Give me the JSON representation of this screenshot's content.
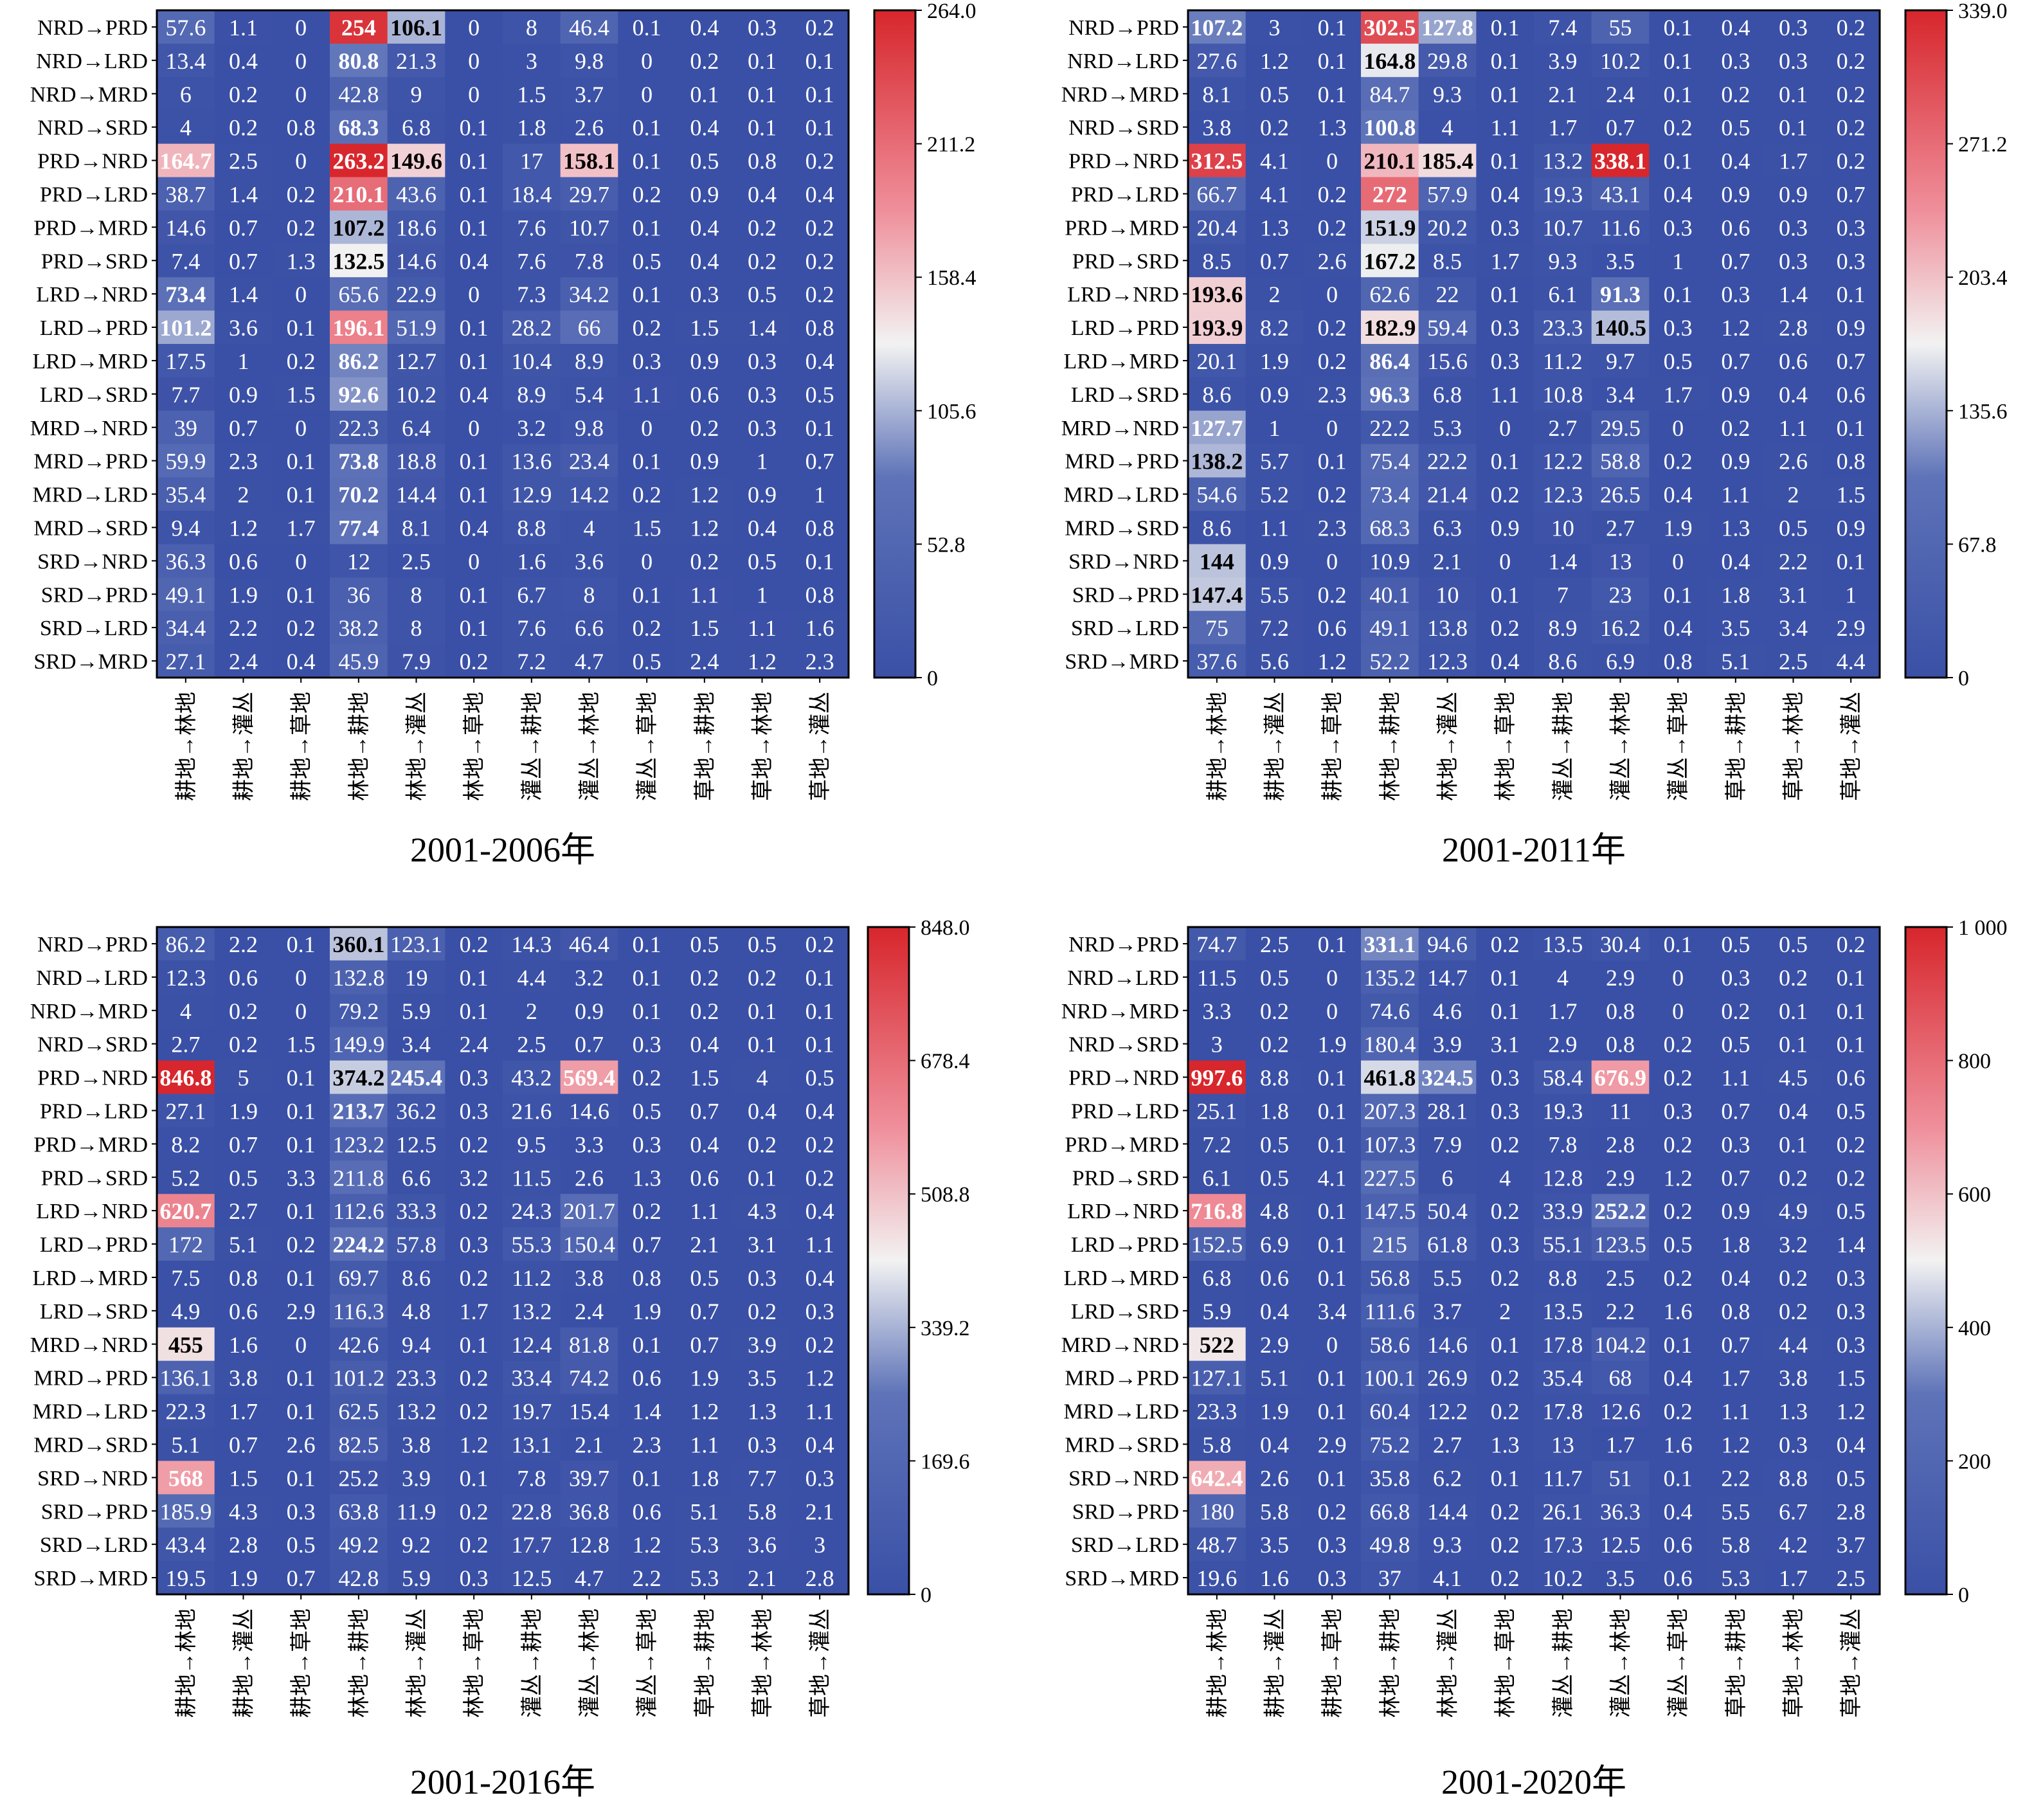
{
  "figure": {
    "row_labels": [
      "NRD→PRD",
      "NRD→LRD",
      "NRD→MRD",
      "NRD→SRD",
      "PRD→NRD",
      "PRD→LRD",
      "PRD→MRD",
      "PRD→SRD",
      "LRD→NRD",
      "LRD→PRD",
      "LRD→MRD",
      "LRD→SRD",
      "MRD→NRD",
      "MRD→PRD",
      "MRD→LRD",
      "MRD→SRD",
      "SRD→NRD",
      "SRD→PRD",
      "SRD→LRD",
      "SRD→MRD"
    ],
    "col_labels": [
      "耕地→林地",
      "耕地→灌丛",
      "耕地→草地",
      "林地→耕地",
      "林地→灌丛",
      "林地→草地",
      "灌丛→耕地",
      "灌丛→林地",
      "灌丛→草地",
      "草地→耕地",
      "草地→林地",
      "草地→灌丛"
    ],
    "colors": {
      "low": "#3a50a6",
      "mid": "#f2f2f2",
      "high": "#d7262c",
      "cell_text_light": "#ffffff",
      "cell_text_dark": "#000000",
      "frame": "#000000"
    }
  },
  "chart_data": [
    {
      "type": "heatmap",
      "title": "2001-2006年",
      "vmin": 0,
      "vmax": 264.0,
      "colorbar_ticks": [
        "264.0",
        "211.2",
        "158.4",
        "105.6",
        "52.8",
        "0"
      ],
      "colorbar_tick_values": [
        264.0,
        211.2,
        158.4,
        105.6,
        52.8,
        0
      ],
      "values": [
        [
          57.6,
          1.1,
          0,
          254,
          106.1,
          0,
          8,
          46.4,
          0.1,
          0.4,
          0.3,
          0.2
        ],
        [
          13.4,
          0.4,
          0,
          80.8,
          21.3,
          0,
          3,
          9.8,
          0,
          0.2,
          0.1,
          0.1
        ],
        [
          6,
          0.2,
          0,
          42.8,
          9,
          0,
          1.5,
          3.7,
          0,
          0.1,
          0.1,
          0.1
        ],
        [
          4,
          0.2,
          0.8,
          68.3,
          6.8,
          0.1,
          1.8,
          2.6,
          0.1,
          0.4,
          0.1,
          0.1
        ],
        [
          164.7,
          2.5,
          0,
          263.2,
          149.6,
          0.1,
          17,
          158.1,
          0.1,
          0.5,
          0.8,
          0.2
        ],
        [
          38.7,
          1.4,
          0.2,
          210.1,
          43.6,
          0.1,
          18.4,
          29.7,
          0.2,
          0.9,
          0.4,
          0.4
        ],
        [
          14.6,
          0.7,
          0.2,
          107.2,
          18.6,
          0.1,
          7.6,
          10.7,
          0.1,
          0.4,
          0.2,
          0.2
        ],
        [
          7.4,
          0.7,
          1.3,
          132.5,
          14.6,
          0.4,
          7.6,
          7.8,
          0.5,
          0.4,
          0.2,
          0.2
        ],
        [
          73.4,
          1.4,
          0,
          65.6,
          22.9,
          0,
          7.3,
          34.2,
          0.1,
          0.3,
          0.5,
          0.2
        ],
        [
          101.2,
          3.6,
          0.1,
          196.1,
          51.9,
          0.1,
          28.2,
          66,
          0.2,
          1.5,
          1.4,
          0.8
        ],
        [
          17.5,
          1,
          0.2,
          86.2,
          12.7,
          0.1,
          10.4,
          8.9,
          0.3,
          0.9,
          0.3,
          0.4
        ],
        [
          7.7,
          0.9,
          1.5,
          92.6,
          10.2,
          0.4,
          8.9,
          5.4,
          1.1,
          0.6,
          0.3,
          0.5
        ],
        [
          39,
          0.7,
          0,
          22.3,
          6.4,
          0,
          3.2,
          9.8,
          0,
          0.2,
          0.3,
          0.1
        ],
        [
          59.9,
          2.3,
          0.1,
          73.8,
          18.8,
          0.1,
          13.6,
          23.4,
          0.1,
          0.9,
          1,
          0.7
        ],
        [
          35.4,
          2,
          0.1,
          70.2,
          14.4,
          0.1,
          12.9,
          14.2,
          0.2,
          1.2,
          0.9,
          1
        ],
        [
          9.4,
          1.2,
          1.7,
          77.4,
          8.1,
          0.4,
          8.8,
          4,
          1.5,
          1.2,
          0.4,
          0.8
        ],
        [
          36.3,
          0.6,
          0,
          12,
          2.5,
          0,
          1.6,
          3.6,
          0,
          0.2,
          0.5,
          0.1
        ],
        [
          49.1,
          1.9,
          0.1,
          36,
          8,
          0.1,
          6.7,
          8,
          0.1,
          1.1,
          1,
          0.8
        ],
        [
          34.4,
          2.2,
          0.2,
          38.2,
          8,
          0.1,
          7.6,
          6.6,
          0.2,
          1.5,
          1.1,
          1.6
        ],
        [
          27.1,
          2.4,
          0.4,
          45.9,
          7.9,
          0.2,
          7.2,
          4.7,
          0.5,
          2.4,
          1.2,
          2.3
        ]
      ]
    },
    {
      "type": "heatmap",
      "title": "2001-2011年",
      "vmin": 0,
      "vmax": 339.0,
      "colorbar_ticks": [
        "339.0",
        "271.2",
        "203.4",
        "135.6",
        "67.8",
        "0"
      ],
      "colorbar_tick_values": [
        339.0,
        271.2,
        203.4,
        135.6,
        67.8,
        0
      ],
      "values": [
        [
          107.2,
          3,
          0.1,
          302.5,
          127.8,
          0.1,
          7.4,
          55,
          0.1,
          0.4,
          0.3,
          0.2
        ],
        [
          27.6,
          1.2,
          0.1,
          164.8,
          29.8,
          0.1,
          3.9,
          10.2,
          0.1,
          0.3,
          0.3,
          0.2
        ],
        [
          8.1,
          0.5,
          0.1,
          84.7,
          9.3,
          0.1,
          2.1,
          2.4,
          0.1,
          0.2,
          0.1,
          0.2
        ],
        [
          3.8,
          0.2,
          1.3,
          100.8,
          4,
          1.1,
          1.7,
          0.7,
          0.2,
          0.5,
          0.1,
          0.2
        ],
        [
          312.5,
          4.1,
          0,
          210.1,
          185.4,
          0.1,
          13.2,
          338.1,
          0.1,
          0.4,
          1.7,
          0.2
        ],
        [
          66.7,
          4.1,
          0.2,
          272,
          57.9,
          0.4,
          19.3,
          43.1,
          0.4,
          0.9,
          0.9,
          0.7
        ],
        [
          20.4,
          1.3,
          0.2,
          151.9,
          20.2,
          0.3,
          10.7,
          11.6,
          0.3,
          0.6,
          0.3,
          0.3
        ],
        [
          8.5,
          0.7,
          2.6,
          167.2,
          8.5,
          1.7,
          9.3,
          3.5,
          1,
          0.7,
          0.3,
          0.3
        ],
        [
          193.6,
          2,
          0,
          62.6,
          22,
          0.1,
          6.1,
          91.3,
          0.1,
          0.3,
          1.4,
          0.1
        ],
        [
          193.9,
          8.2,
          0.2,
          182.9,
          59.4,
          0.3,
          23.3,
          140.5,
          0.3,
          1.2,
          2.8,
          0.9
        ],
        [
          20.1,
          1.9,
          0.2,
          86.4,
          15.6,
          0.3,
          11.2,
          9.7,
          0.5,
          0.7,
          0.6,
          0.7
        ],
        [
          8.6,
          0.9,
          2.3,
          96.3,
          6.8,
          1.1,
          10.8,
          3.4,
          1.7,
          0.9,
          0.4,
          0.6
        ],
        [
          127.7,
          1,
          0,
          22.2,
          5.3,
          0,
          2.7,
          29.5,
          0,
          0.2,
          1.1,
          0.1
        ],
        [
          138.2,
          5.7,
          0.1,
          75.4,
          22.2,
          0.1,
          12.2,
          58.8,
          0.2,
          0.9,
          2.6,
          0.8
        ],
        [
          54.6,
          5.2,
          0.2,
          73.4,
          21.4,
          0.2,
          12.3,
          26.5,
          0.4,
          1.1,
          2,
          1.5
        ],
        [
          8.6,
          1.1,
          2.3,
          68.3,
          6.3,
          0.9,
          10,
          2.7,
          1.9,
          1.3,
          0.5,
          0.9
        ],
        [
          144,
          0.9,
          0,
          10.9,
          2.1,
          0,
          1.4,
          13,
          0,
          0.4,
          2.2,
          0.1
        ],
        [
          147.4,
          5.5,
          0.2,
          40.1,
          10,
          0.1,
          7,
          23,
          0.1,
          1.8,
          3.1,
          1
        ],
        [
          75,
          7.2,
          0.6,
          49.1,
          13.8,
          0.2,
          8.9,
          16.2,
          0.4,
          3.5,
          3.4,
          2.9
        ],
        [
          37.6,
          5.6,
          1.2,
          52.2,
          12.3,
          0.4,
          8.6,
          6.9,
          0.8,
          5.1,
          2.5,
          4.4
        ]
      ]
    },
    {
      "type": "heatmap",
      "title": "2001-2016年",
      "vmin": 0,
      "vmax": 848.0,
      "colorbar_ticks": [
        "848.0",
        "678.4",
        "508.8",
        "339.2",
        "169.6",
        "0"
      ],
      "colorbar_tick_values": [
        848.0,
        678.4,
        508.8,
        339.2,
        169.6,
        0
      ],
      "values": [
        [
          86.2,
          2.2,
          0.1,
          360.1,
          123.1,
          0.2,
          14.3,
          46.4,
          0.1,
          0.5,
          0.5,
          0.2
        ],
        [
          12.3,
          0.6,
          0,
          132.8,
          19,
          0.1,
          4.4,
          3.2,
          0.1,
          0.2,
          0.2,
          0.1
        ],
        [
          4,
          0.2,
          0,
          79.2,
          5.9,
          0.1,
          2,
          0.9,
          0.1,
          0.2,
          0.1,
          0.1
        ],
        [
          2.7,
          0.2,
          1.5,
          149.9,
          3.4,
          2.4,
          2.5,
          0.7,
          0.3,
          0.4,
          0.1,
          0.1
        ],
        [
          846.8,
          5,
          0.1,
          374.2,
          245.4,
          0.3,
          43.2,
          569.4,
          0.2,
          1.5,
          4,
          0.5
        ],
        [
          27.1,
          1.9,
          0.1,
          213.7,
          36.2,
          0.3,
          21.6,
          14.6,
          0.5,
          0.7,
          0.4,
          0.4
        ],
        [
          8.2,
          0.7,
          0.1,
          123.2,
          12.5,
          0.2,
          9.5,
          3.3,
          0.3,
          0.4,
          0.2,
          0.2
        ],
        [
          5.2,
          0.5,
          3.3,
          211.8,
          6.6,
          3.2,
          11.5,
          2.6,
          1.3,
          0.6,
          0.1,
          0.2
        ],
        [
          620.7,
          2.7,
          0.1,
          112.6,
          33.3,
          0.2,
          24.3,
          201.7,
          0.2,
          1.1,
          4.3,
          0.4
        ],
        [
          172,
          5.1,
          0.2,
          224.2,
          57.8,
          0.3,
          55.3,
          150.4,
          0.7,
          2.1,
          3.1,
          1.1
        ],
        [
          7.5,
          0.8,
          0.1,
          69.7,
          8.6,
          0.2,
          11.2,
          3.8,
          0.8,
          0.5,
          0.3,
          0.4
        ],
        [
          4.9,
          0.6,
          2.9,
          116.3,
          4.8,
          1.7,
          13.2,
          2.4,
          1.9,
          0.7,
          0.2,
          0.3
        ],
        [
          455,
          1.6,
          0,
          42.6,
          9.4,
          0.1,
          12.4,
          81.8,
          0.1,
          0.7,
          3.9,
          0.2
        ],
        [
          136.1,
          3.8,
          0.1,
          101.2,
          23.3,
          0.2,
          33.4,
          74.2,
          0.6,
          1.9,
          3.5,
          1.2
        ],
        [
          22.3,
          1.7,
          0.1,
          62.5,
          13.2,
          0.2,
          19.7,
          15.4,
          1.4,
          1.2,
          1.3,
          1.1
        ],
        [
          5.1,
          0.7,
          2.6,
          82.5,
          3.8,
          1.2,
          13.1,
          2.1,
          2.3,
          1.1,
          0.3,
          0.4
        ],
        [
          568,
          1.5,
          0.1,
          25.2,
          3.9,
          0.1,
          7.8,
          39.7,
          0.1,
          1.8,
          7.7,
          0.3
        ],
        [
          185.9,
          4.3,
          0.3,
          63.8,
          11.9,
          0.2,
          22.8,
          36.8,
          0.6,
          5.1,
          5.8,
          2.1
        ],
        [
          43.4,
          2.8,
          0.5,
          49.2,
          9.2,
          0.2,
          17.7,
          12.8,
          1.2,
          5.3,
          3.6,
          3
        ],
        [
          19.5,
          1.9,
          0.7,
          42.8,
          5.9,
          0.3,
          12.5,
          4.7,
          2.2,
          5.3,
          2.1,
          2.8
        ]
      ]
    },
    {
      "type": "heatmap",
      "title": "2001-2020年",
      "vmin": 0,
      "vmax": 1000,
      "colorbar_ticks": [
        "1 000",
        "800",
        "600",
        "400",
        "200",
        "0"
      ],
      "colorbar_tick_values": [
        1000,
        800,
        600,
        400,
        200,
        0
      ],
      "values": [
        [
          74.7,
          2.5,
          0.1,
          331.1,
          94.6,
          0.2,
          13.5,
          30.4,
          0.1,
          0.5,
          0.5,
          0.2
        ],
        [
          11.5,
          0.5,
          0,
          135.2,
          14.7,
          0.1,
          4,
          2.9,
          0,
          0.3,
          0.2,
          0.1
        ],
        [
          3.3,
          0.2,
          0,
          74.6,
          4.6,
          0.1,
          1.7,
          0.8,
          0,
          0.2,
          0.1,
          0.1
        ],
        [
          3,
          0.2,
          1.9,
          180.4,
          3.9,
          3.1,
          2.9,
          0.8,
          0.2,
          0.5,
          0.1,
          0.1
        ],
        [
          997.6,
          8.8,
          0.1,
          461.8,
          324.5,
          0.3,
          58.4,
          676.9,
          0.2,
          1.1,
          4.5,
          0.6
        ],
        [
          25.1,
          1.8,
          0.1,
          207.3,
          28.1,
          0.3,
          19.3,
          11,
          0.3,
          0.7,
          0.4,
          0.5
        ],
        [
          7.2,
          0.5,
          0.1,
          107.3,
          7.9,
          0.2,
          7.8,
          2.8,
          0.2,
          0.3,
          0.1,
          0.2
        ],
        [
          6.1,
          0.5,
          4.1,
          227.5,
          6,
          4,
          12.8,
          2.9,
          1.2,
          0.7,
          0.2,
          0.2
        ],
        [
          716.8,
          4.8,
          0.1,
          147.5,
          50.4,
          0.2,
          33.9,
          252.2,
          0.2,
          0.9,
          4.9,
          0.5
        ],
        [
          152.5,
          6.9,
          0.1,
          215,
          61.8,
          0.3,
          55.1,
          123.5,
          0.5,
          1.8,
          3.2,
          1.4
        ],
        [
          6.8,
          0.6,
          0.1,
          56.8,
          5.5,
          0.2,
          8.8,
          2.5,
          0.2,
          0.4,
          0.2,
          0.3
        ],
        [
          5.9,
          0.4,
          3.4,
          111.6,
          3.7,
          2,
          13.5,
          2.2,
          1.6,
          0.8,
          0.2,
          0.3
        ],
        [
          522,
          2.9,
          0,
          58.6,
          14.6,
          0.1,
          17.8,
          104.2,
          0.1,
          0.7,
          4.4,
          0.3
        ],
        [
          127.1,
          5.1,
          0.1,
          100.1,
          26.9,
          0.2,
          35.4,
          68,
          0.4,
          1.7,
          3.8,
          1.5
        ],
        [
          23.3,
          1.9,
          0.1,
          60.4,
          12.2,
          0.2,
          17.8,
          12.6,
          0.2,
          1.1,
          1.3,
          1.2
        ],
        [
          5.8,
          0.4,
          2.9,
          75.2,
          2.7,
          1.3,
          13,
          1.7,
          1.6,
          1.2,
          0.3,
          0.4
        ],
        [
          642.4,
          2.6,
          0.1,
          35.8,
          6.2,
          0.1,
          11.7,
          51,
          0.1,
          2.2,
          8.8,
          0.5
        ],
        [
          180,
          5.8,
          0.2,
          66.8,
          14.4,
          0.2,
          26.1,
          36.3,
          0.4,
          5.5,
          6.7,
          2.8
        ],
        [
          48.7,
          3.5,
          0.3,
          49.8,
          9.3,
          0.2,
          17.3,
          12.5,
          0.6,
          5.8,
          4.2,
          3.7
        ],
        [
          19.6,
          1.6,
          0.3,
          37,
          4.1,
          0.2,
          10.2,
          3.5,
          0.6,
          5.3,
          1.7,
          2.5
        ]
      ]
    }
  ]
}
